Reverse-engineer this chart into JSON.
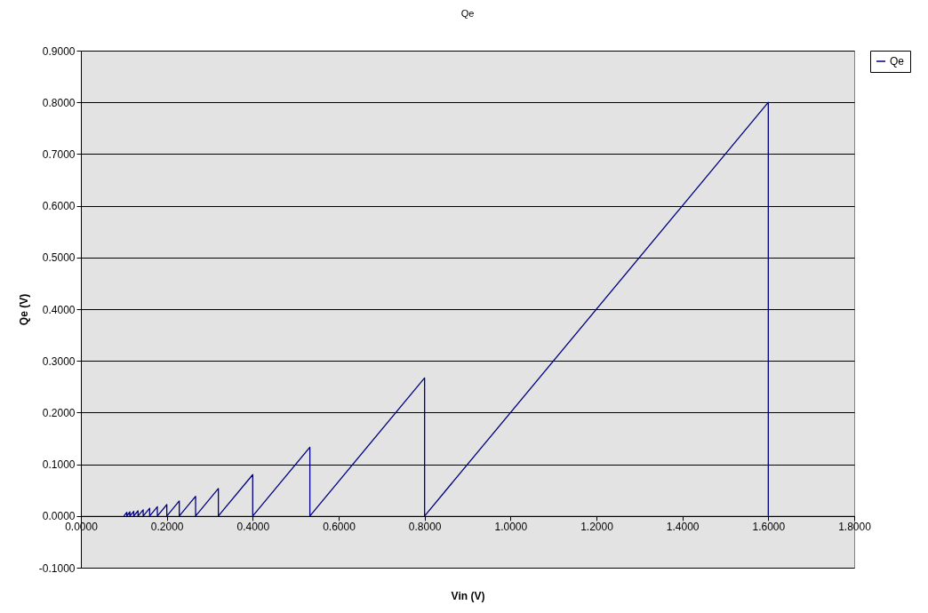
{
  "chart_data": {
    "type": "line",
    "title": "Qe",
    "xlabel": "Vin (V)",
    "ylabel": "Qe (V)",
    "series": [
      {
        "name": "Qe",
        "color": "#000080",
        "x": [
          0.1,
          0.107,
          0.107,
          0.114,
          0.114,
          0.123,
          0.123,
          0.133,
          0.133,
          0.145,
          0.145,
          0.16,
          0.16,
          0.178,
          0.178,
          0.2,
          0.2,
          0.229,
          0.229,
          0.267,
          0.267,
          0.32,
          0.32,
          0.4,
          0.4,
          0.533,
          0.533,
          0.8,
          0.8,
          1.6,
          1.6
        ],
        "values": [
          0,
          0.007,
          0,
          0.008,
          0,
          0.009,
          0,
          0.01,
          0,
          0.012,
          0,
          0.015,
          0,
          0.018,
          0,
          0.022,
          0,
          0.029,
          0,
          0.038,
          0,
          0.053,
          0,
          0.08,
          0,
          0.133,
          0,
          0.267,
          0,
          0.8,
          0
        ]
      }
    ],
    "xlim": [
      0,
      1.8
    ],
    "ylim": [
      -0.1,
      0.9
    ],
    "xticks": [
      {
        "value": 0,
        "label": "0.0000"
      },
      {
        "value": 0.2,
        "label": "0.2000"
      },
      {
        "value": 0.4,
        "label": "0.4000"
      },
      {
        "value": 0.6,
        "label": "0.6000"
      },
      {
        "value": 0.8,
        "label": "0.8000"
      },
      {
        "value": 1.0,
        "label": "1.0000"
      },
      {
        "value": 1.2,
        "label": "1.2000"
      },
      {
        "value": 1.4,
        "label": "1.4000"
      },
      {
        "value": 1.6,
        "label": "1.6000"
      },
      {
        "value": 1.8,
        "label": "1.8000"
      }
    ],
    "yticks": [
      {
        "value": -0.1,
        "label": "-0.1000"
      },
      {
        "value": 0,
        "label": "0.0000"
      },
      {
        "value": 0.1,
        "label": "0.1000"
      },
      {
        "value": 0.2,
        "label": "0.2000"
      },
      {
        "value": 0.3,
        "label": "0.3000"
      },
      {
        "value": 0.4,
        "label": "0.4000"
      },
      {
        "value": 0.5,
        "label": "0.5000"
      },
      {
        "value": 0.6,
        "label": "0.6000"
      },
      {
        "value": 0.7,
        "label": "0.7000"
      },
      {
        "value": 0.8,
        "label": "0.8000"
      },
      {
        "value": 0.9,
        "label": "0.9000"
      }
    ],
    "grid": "y",
    "legend": "right",
    "marker": "none",
    "line_style": "solid"
  }
}
